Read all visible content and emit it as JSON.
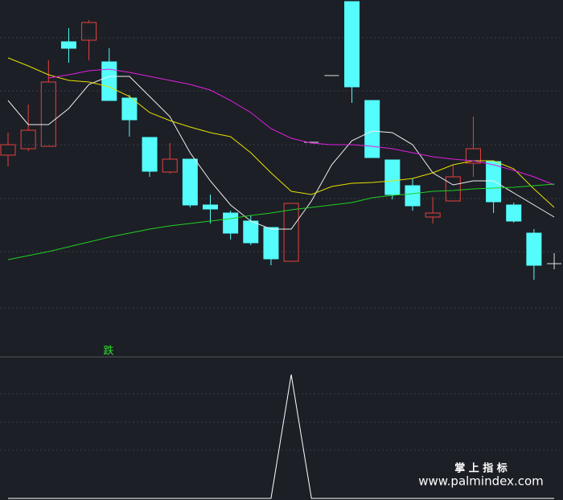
{
  "chart_data": {
    "type": "candlestick",
    "ylim": [
      0,
      440
    ],
    "up_color": "#e8413c",
    "down_color": "#54fcfc",
    "flat_color": "#e0e0e0",
    "open": [
      247,
      255,
      258,
      388,
      390,
      363,
      318,
      269,
      226,
      242,
      185,
      175,
      165,
      157,
      115,
      263,
      346,
      438,
      315,
      241,
      209,
      170,
      190,
      237,
      239,
      185,
      150,
      112
    ],
    "close": [
      260,
      278,
      338,
      380,
      412,
      315,
      291,
      227,
      242,
      185,
      180,
      150,
      138,
      118,
      187,
      263,
      346,
      332,
      244,
      198,
      184,
      175,
      220,
      255,
      189,
      165,
      110,
      112
    ],
    "high": [
      275,
      310,
      365,
      405,
      415,
      380,
      322,
      269,
      262,
      242,
      198,
      178,
      172,
      157,
      187,
      263,
      346,
      438,
      315,
      241,
      218,
      195,
      235,
      295,
      239,
      188,
      155,
      125
    ],
    "low": [
      233,
      252,
      258,
      362,
      365,
      315,
      270,
      220,
      224,
      182,
      162,
      142,
      135,
      110,
      115,
      263,
      346,
      312,
      244,
      192,
      178,
      162,
      190,
      220,
      175,
      163,
      92,
      105
    ],
    "series": [
      {
        "color": "#f0f0f0",
        "values": [
          315,
          285,
          285,
          305,
          335,
          345,
          345,
          320,
          295,
          250,
          215,
          185,
          165,
          155,
          155,
          190,
          235,
          265,
          277,
          275,
          260,
          225,
          210,
          215,
          215,
          200,
          185,
          170
        ]
      },
      {
        "color": "#e8e000",
        "values": [
          368,
          358,
          347,
          340,
          338,
          332,
          320,
          300,
          290,
          282,
          275,
          270,
          250,
          225,
          202,
          198,
          208,
          212,
          213,
          215,
          218,
          225,
          235,
          240,
          240,
          230,
          205,
          182
        ]
      },
      {
        "color": "#e020e0",
        "values": [
          null,
          null,
          343,
          347,
          352,
          354,
          350,
          345,
          340,
          335,
          328,
          315,
          300,
          280,
          268,
          262,
          260,
          260,
          258,
          255,
          250,
          245,
          242,
          240,
          235,
          228,
          220,
          210
        ]
      },
      {
        "color": "#20d020",
        "values": [
          117,
          122,
          127,
          133,
          139,
          145,
          150,
          155,
          159,
          162,
          165,
          168,
          172,
          175,
          179,
          182,
          185,
          188,
          194,
          197,
          199,
          202,
          203,
          205,
          206,
          207,
          209,
          211
        ]
      }
    ],
    "signal_label": "跌",
    "indicator": {
      "color": "#ffffff",
      "ylim": [
        0,
        175
      ],
      "values": [
        0,
        0,
        0,
        0,
        0,
        0,
        0,
        0,
        0,
        0,
        0,
        0,
        0,
        0,
        154,
        0,
        0,
        0,
        0,
        0,
        0,
        0,
        0,
        0,
        0,
        0,
        0,
        0
      ]
    }
  },
  "watermark": {
    "title": "掌 上 指 标",
    "url": "www.palmindex.com"
  }
}
